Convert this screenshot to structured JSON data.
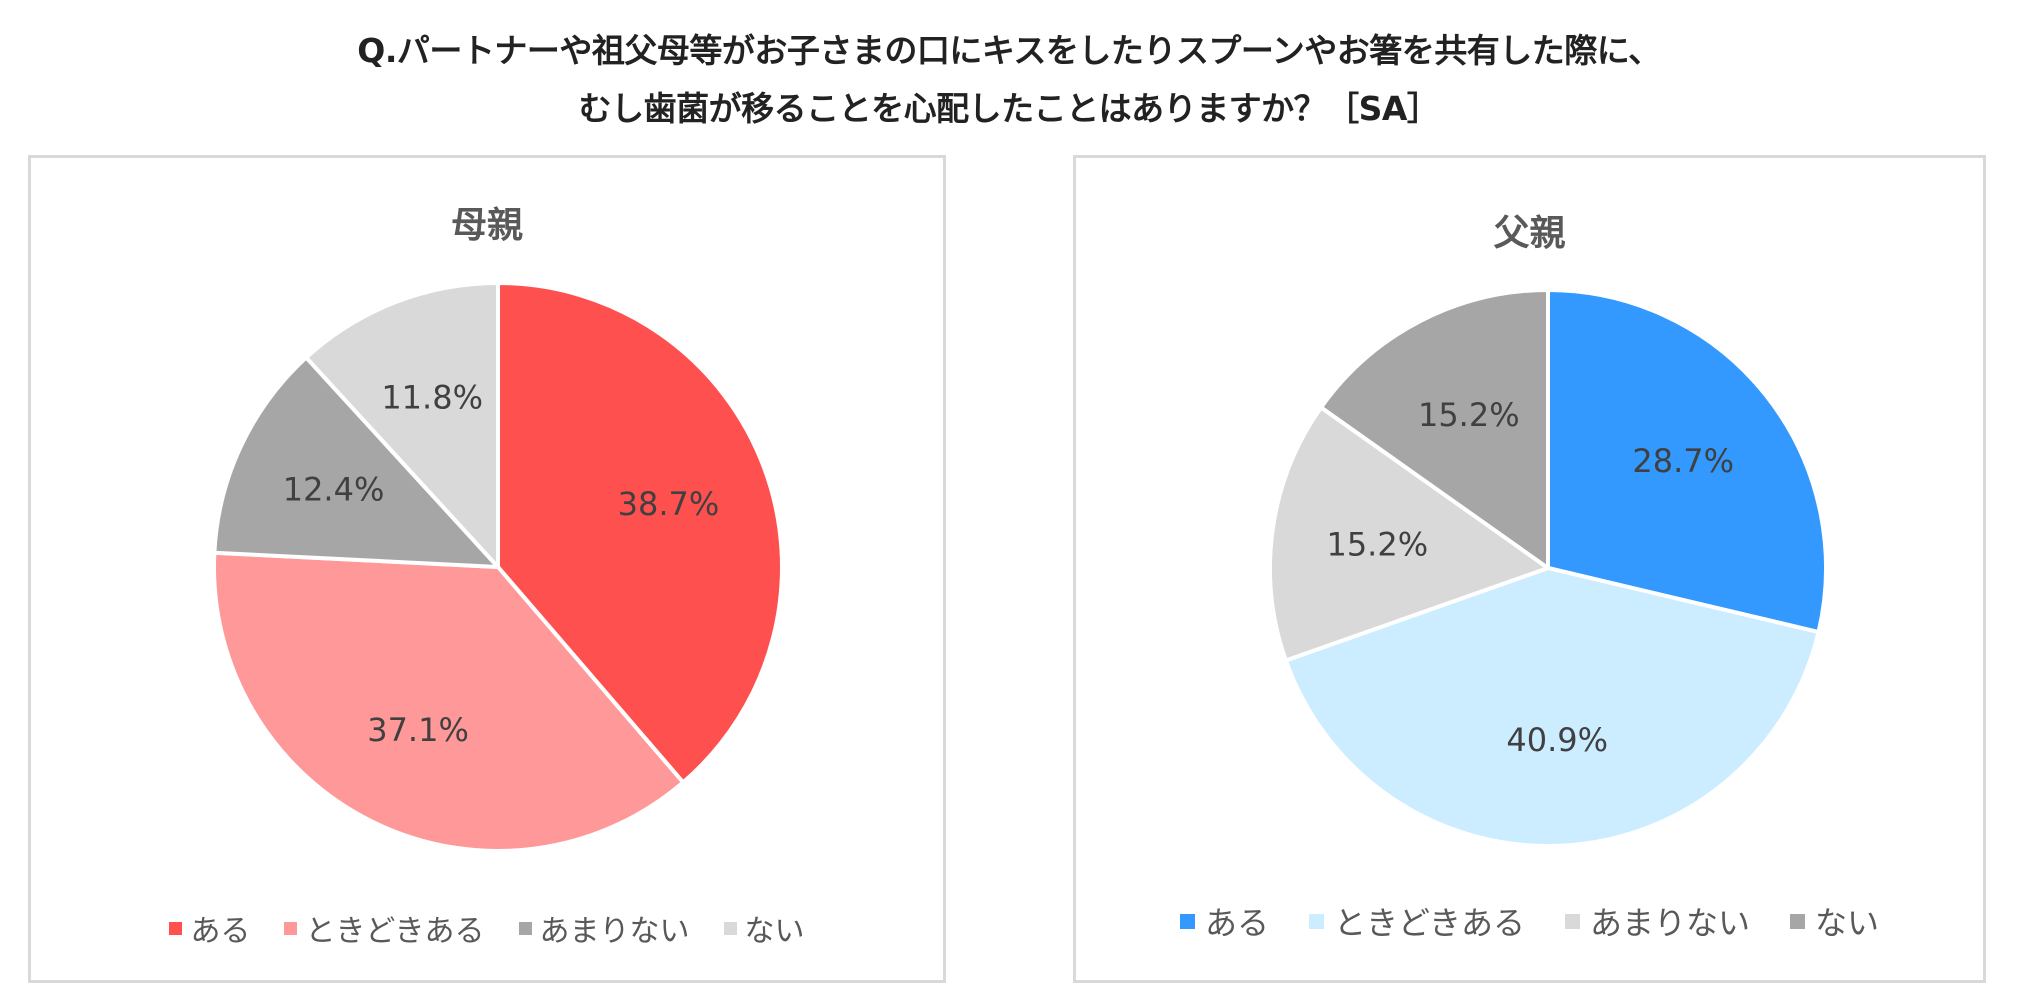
{
  "question": {
    "line1": "Q.パートナーや祖父母等がお子さまの口にキスをしたりスプーンやお箸を共有した際に、",
    "line2": "むし歯菌が移ることを心配したことはありますか？［SA］"
  },
  "chart_data": [
    {
      "type": "pie",
      "title": "母親",
      "categories": [
        "ある",
        "ときどきある",
        "あまりない",
        "ない"
      ],
      "values": [
        38.7,
        37.1,
        12.4,
        11.8
      ],
      "data_labels": [
        "38.7%",
        "37.1%",
        "12.4%",
        "11.8%"
      ],
      "colors": [
        "#FF5050",
        "#FF9999",
        "#A6A6A6",
        "#D9D9D9"
      ],
      "start_angle_deg": 0,
      "direction": "clockwise",
      "legend": "bottom"
    },
    {
      "type": "pie",
      "title": "父親",
      "categories": [
        "ある",
        "ときどきある",
        "あまりない",
        "ない"
      ],
      "values": [
        28.7,
        40.9,
        15.2,
        15.2
      ],
      "data_labels": [
        "28.7%",
        "40.9%",
        "15.2%",
        "15.2%"
      ],
      "colors": [
        "#3399FF",
        "#CCECFF",
        "#D9D9D9",
        "#A6A6A6"
      ],
      "start_angle_deg": 0,
      "direction": "clockwise",
      "legend": "bottom"
    }
  ]
}
